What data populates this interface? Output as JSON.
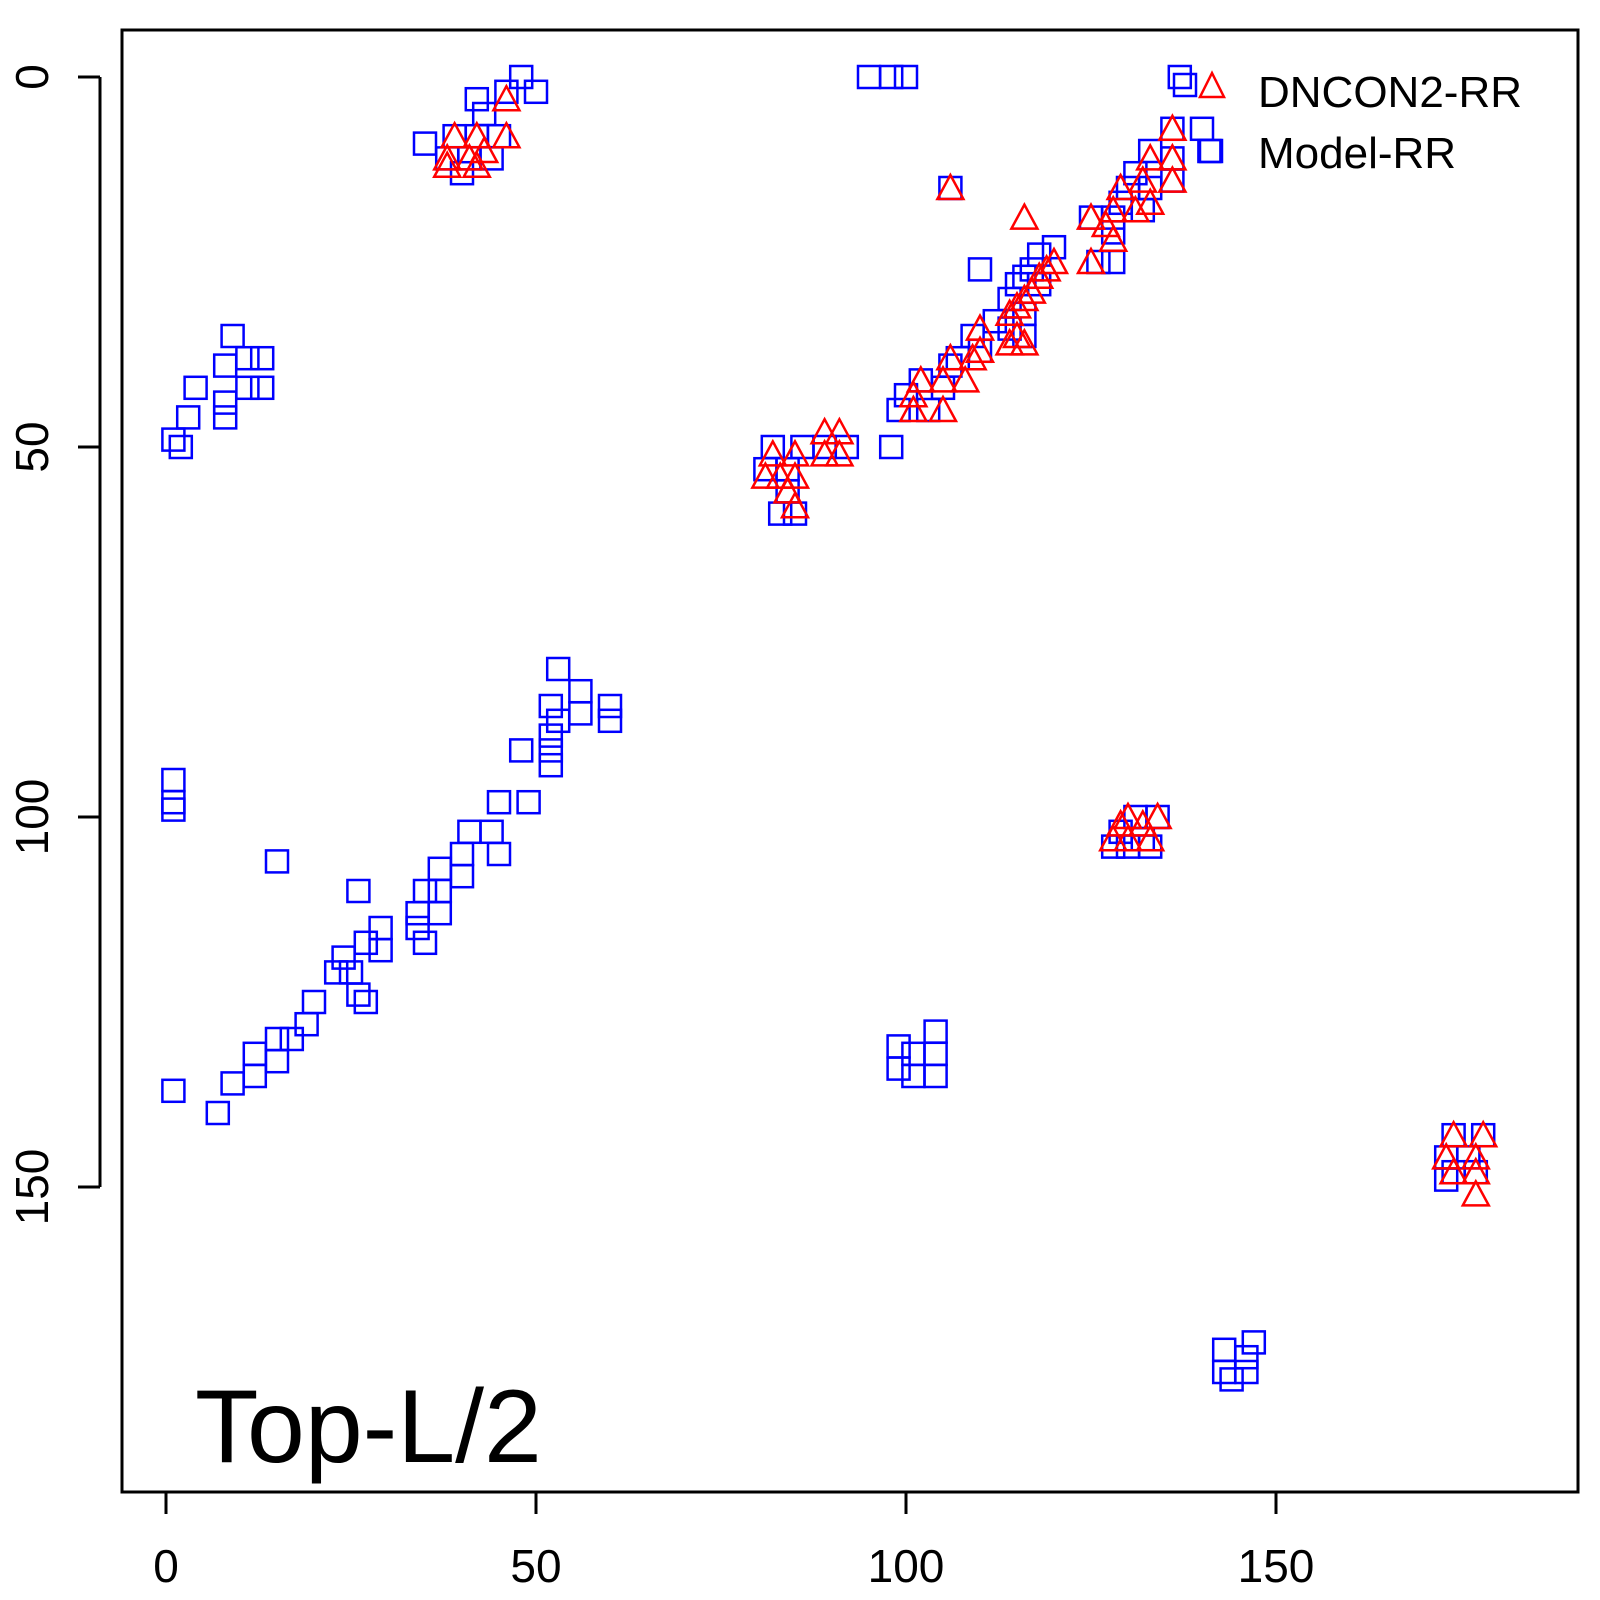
{
  "chart_data": {
    "type": "scatter",
    "title": "",
    "xlabel": "",
    "ylabel": "",
    "xlim": [
      -6,
      190
    ],
    "ylim": [
      -6.5,
      190
    ],
    "y_reversed": true,
    "grid": false,
    "legend_position": "top-right",
    "annotation": "Top-L/2",
    "x_ticks": [
      "0",
      "50",
      "100",
      "150"
    ],
    "y_ticks": [
      "0",
      "50",
      "100",
      "150"
    ],
    "series": [
      {
        "name": "DNCON2-RR",
        "marker": "triangle",
        "color": "#ff0000",
        "points": [
          [
            46,
            3
          ],
          [
            39,
            8
          ],
          [
            42,
            8
          ],
          [
            46,
            8
          ],
          [
            38,
            11
          ],
          [
            41,
            11
          ],
          [
            43,
            10
          ],
          [
            38,
            12
          ],
          [
            42,
            12
          ],
          [
            106,
            15
          ],
          [
            116,
            19
          ],
          [
            136,
            7
          ],
          [
            136,
            11
          ],
          [
            133,
            11
          ],
          [
            129,
            15
          ],
          [
            128,
            18
          ],
          [
            132,
            14
          ],
          [
            136,
            14
          ],
          [
            133,
            17
          ],
          [
            131,
            18
          ],
          [
            127,
            20
          ],
          [
            125,
            19
          ],
          [
            128,
            22
          ],
          [
            125,
            25
          ],
          [
            120,
            25
          ],
          [
            119,
            26
          ],
          [
            118,
            27
          ],
          [
            117,
            29
          ],
          [
            116,
            30
          ],
          [
            115,
            31
          ],
          [
            114,
            32
          ],
          [
            115,
            35
          ],
          [
            116,
            36
          ],
          [
            114,
            36
          ],
          [
            110,
            34
          ],
          [
            110,
            37
          ],
          [
            109,
            38
          ],
          [
            106,
            38
          ],
          [
            105,
            41
          ],
          [
            108,
            41
          ],
          [
            102,
            41
          ],
          [
            101,
            43
          ],
          [
            105,
            45
          ],
          [
            101,
            45
          ],
          [
            82,
            51
          ],
          [
            81,
            54
          ],
          [
            83,
            54
          ],
          [
            85,
            51
          ],
          [
            85,
            54
          ],
          [
            84,
            56
          ],
          [
            85,
            58
          ],
          [
            89,
            48
          ],
          [
            91,
            48
          ],
          [
            89,
            51
          ],
          [
            91,
            51
          ],
          [
            130,
            100
          ],
          [
            134,
            100
          ],
          [
            129,
            101
          ],
          [
            132,
            101
          ],
          [
            128,
            103
          ],
          [
            130,
            103
          ],
          [
            133,
            103
          ],
          [
            174,
            143
          ],
          [
            178,
            143
          ],
          [
            173,
            146
          ],
          [
            177,
            146
          ],
          [
            174,
            148
          ],
          [
            177,
            148
          ],
          [
            177,
            151
          ]
        ]
      },
      {
        "name": "Model-RR",
        "marker": "square",
        "color": "#0000ff",
        "points": [
          [
            48,
            0
          ],
          [
            50,
            2
          ],
          [
            46,
            2
          ],
          [
            42,
            3
          ],
          [
            43,
            5
          ],
          [
            35,
            9
          ],
          [
            39,
            8
          ],
          [
            42,
            8
          ],
          [
            45,
            8
          ],
          [
            38,
            11
          ],
          [
            41,
            11
          ],
          [
            44,
            11
          ],
          [
            40,
            13
          ],
          [
            95,
            0
          ],
          [
            98,
            0
          ],
          [
            100,
            0
          ],
          [
            137,
            0
          ],
          [
            140,
            7
          ],
          [
            141,
            10
          ],
          [
            106,
            15
          ],
          [
            136,
            7
          ],
          [
            133,
            10
          ],
          [
            136,
            11
          ],
          [
            131,
            13
          ],
          [
            130,
            15
          ],
          [
            133,
            15
          ],
          [
            136,
            14
          ],
          [
            129,
            17
          ],
          [
            132,
            18
          ],
          [
            128,
            19
          ],
          [
            125,
            19
          ],
          [
            128,
            21
          ],
          [
            126,
            25
          ],
          [
            128,
            25
          ],
          [
            120,
            23
          ],
          [
            118,
            24
          ],
          [
            117,
            26
          ],
          [
            116,
            27
          ],
          [
            118,
            28
          ],
          [
            115,
            28
          ],
          [
            114,
            30
          ],
          [
            116,
            32
          ],
          [
            114,
            34
          ],
          [
            116,
            35
          ],
          [
            112,
            33
          ],
          [
            109,
            35
          ],
          [
            110,
            37
          ],
          [
            107,
            38
          ],
          [
            106,
            39
          ],
          [
            105,
            42
          ],
          [
            102,
            41
          ],
          [
            100,
            43
          ],
          [
            103,
            45
          ],
          [
            99,
            45
          ],
          [
            98,
            50
          ],
          [
            110,
            26
          ],
          [
            82,
            50
          ],
          [
            81,
            53
          ],
          [
            84,
            53
          ],
          [
            84,
            56
          ],
          [
            85,
            59
          ],
          [
            83,
            59
          ],
          [
            86,
            50
          ],
          [
            89,
            50
          ],
          [
            92,
            50
          ],
          [
            9,
            35
          ],
          [
            11,
            38
          ],
          [
            13,
            38
          ],
          [
            8,
            39
          ],
          [
            11,
            42
          ],
          [
            13,
            42
          ],
          [
            8,
            44
          ],
          [
            4,
            42
          ],
          [
            3,
            46
          ],
          [
            8,
            46
          ],
          [
            1,
            49
          ],
          [
            2,
            50
          ],
          [
            1,
            95
          ],
          [
            1,
            98
          ],
          [
            1,
            99
          ],
          [
            15,
            106
          ],
          [
            26,
            110
          ],
          [
            53,
            80
          ],
          [
            52,
            85
          ],
          [
            53,
            87
          ],
          [
            56,
            83
          ],
          [
            56,
            86
          ],
          [
            60,
            85
          ],
          [
            60,
            87
          ],
          [
            52,
            89
          ],
          [
            52,
            91
          ],
          [
            48,
            91
          ],
          [
            52,
            93
          ],
          [
            45,
            98
          ],
          [
            49,
            98
          ],
          [
            41,
            102
          ],
          [
            44,
            102
          ],
          [
            45,
            105
          ],
          [
            40,
            105
          ],
          [
            37,
            107
          ],
          [
            40,
            108
          ],
          [
            35,
            110
          ],
          [
            37,
            110
          ],
          [
            34,
            113
          ],
          [
            37,
            113
          ],
          [
            34,
            115
          ],
          [
            35,
            117
          ],
          [
            29,
            115
          ],
          [
            27,
            117
          ],
          [
            29,
            118
          ],
          [
            24,
            119
          ],
          [
            25,
            121
          ],
          [
            23,
            121
          ],
          [
            26,
            124
          ],
          [
            27,
            125
          ],
          [
            20,
            125
          ],
          [
            19,
            128
          ],
          [
            17,
            130
          ],
          [
            15,
            130
          ],
          [
            12,
            132
          ],
          [
            15,
            133
          ],
          [
            12,
            135
          ],
          [
            9,
            136
          ],
          [
            7,
            140
          ],
          [
            1,
            137
          ],
          [
            99,
            131
          ],
          [
            101,
            132
          ],
          [
            104,
            129
          ],
          [
            104,
            132
          ],
          [
            99,
            134
          ],
          [
            101,
            135
          ],
          [
            104,
            135
          ],
          [
            131,
            100
          ],
          [
            134,
            100
          ],
          [
            129,
            102
          ],
          [
            132,
            103
          ],
          [
            128,
            104
          ],
          [
            130,
            104
          ],
          [
            133,
            104
          ],
          [
            174,
            143
          ],
          [
            178,
            143
          ],
          [
            173,
            146
          ],
          [
            176,
            146
          ],
          [
            174,
            148
          ],
          [
            177,
            148
          ],
          [
            173,
            149
          ],
          [
            143,
            172
          ],
          [
            143,
            175
          ],
          [
            146,
            173
          ],
          [
            146,
            175
          ],
          [
            147,
            171
          ],
          [
            144,
            176
          ]
        ]
      }
    ]
  }
}
